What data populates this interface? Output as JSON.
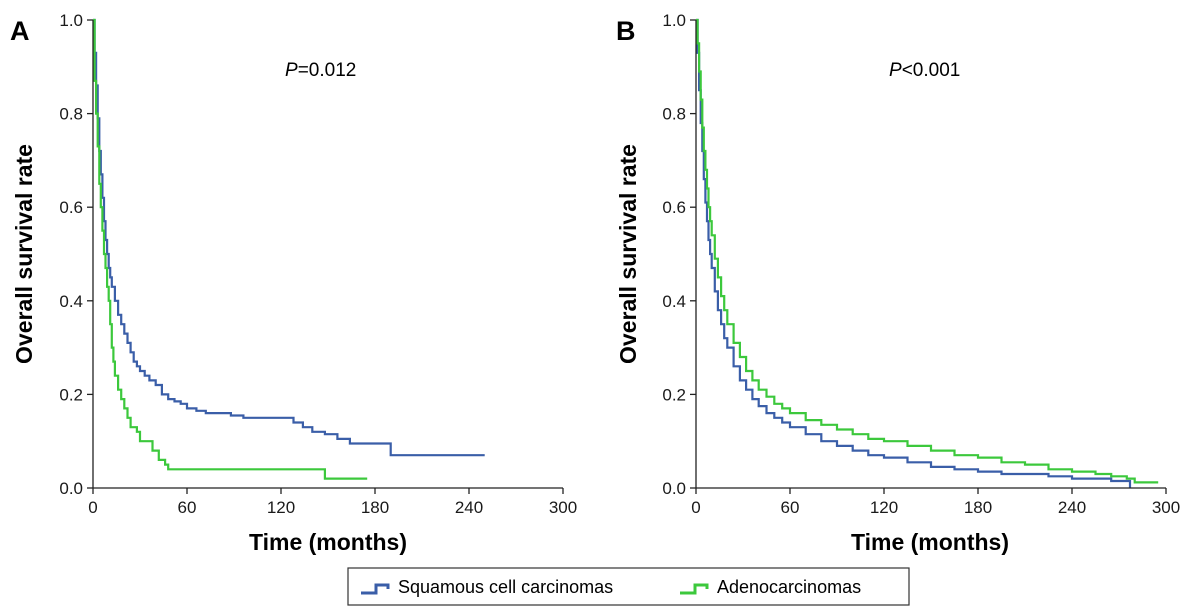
{
  "colors": {
    "squamous": "#3a5ea8",
    "adeno": "#3cc83c",
    "axis": "#222222"
  },
  "legend": {
    "squamous_label": "Squamous cell carcinomas",
    "adeno_label": "Adenocarcinomas"
  },
  "chart_data": [
    {
      "panel": "A",
      "type": "line",
      "step": true,
      "annotation": {
        "prefix": "P",
        "rest": "=0.012"
      },
      "xlabel": "Time (months)",
      "ylabel": "Overall survival rate",
      "xlim": [
        0,
        300
      ],
      "ylim": [
        0,
        1.0
      ],
      "xticks": [
        0,
        60,
        120,
        180,
        240,
        300
      ],
      "yticks": [
        0.0,
        0.2,
        0.4,
        0.6,
        0.8,
        1.0
      ],
      "ytick_labels": [
        "0.0",
        "0.2",
        "0.4",
        "0.6",
        "0.8",
        "1.0"
      ],
      "grid": false,
      "series": [
        {
          "name": "Squamous cell carcinomas",
          "color_key": "squamous",
          "x": [
            0,
            1,
            2,
            3,
            4,
            5,
            6,
            7,
            8,
            9,
            10,
            11,
            12,
            14,
            16,
            18,
            20,
            22,
            24,
            26,
            28,
            30,
            33,
            36,
            40,
            44,
            48,
            52,
            56,
            60,
            66,
            72,
            80,
            88,
            96,
            104,
            112,
            120,
            128,
            134,
            140,
            148,
            156,
            164,
            172,
            180,
            190,
            200,
            210,
            220,
            230,
            240,
            250
          ],
          "y": [
            1.0,
            0.93,
            0.86,
            0.79,
            0.72,
            0.67,
            0.62,
            0.57,
            0.53,
            0.5,
            0.47,
            0.45,
            0.43,
            0.4,
            0.37,
            0.35,
            0.33,
            0.31,
            0.29,
            0.27,
            0.26,
            0.25,
            0.24,
            0.23,
            0.22,
            0.2,
            0.19,
            0.185,
            0.18,
            0.17,
            0.165,
            0.16,
            0.16,
            0.155,
            0.15,
            0.15,
            0.15,
            0.15,
            0.14,
            0.13,
            0.12,
            0.115,
            0.105,
            0.095,
            0.095,
            0.095,
            0.07,
            0.07,
            0.07,
            0.07,
            0.07,
            0.07,
            0.07
          ]
        },
        {
          "name": "Adenocarcinomas",
          "color_key": "adeno",
          "x": [
            0,
            1,
            2,
            3,
            4,
            5,
            6,
            7,
            8,
            9,
            10,
            11,
            12,
            13,
            14,
            16,
            18,
            20,
            22,
            24,
            26,
            28,
            30,
            34,
            38,
            42,
            46,
            48,
            60,
            80,
            100,
            120,
            140,
            148,
            160,
            175
          ],
          "y": [
            1.0,
            0.87,
            0.8,
            0.73,
            0.65,
            0.6,
            0.55,
            0.5,
            0.47,
            0.43,
            0.4,
            0.35,
            0.3,
            0.27,
            0.24,
            0.21,
            0.19,
            0.17,
            0.15,
            0.13,
            0.13,
            0.12,
            0.1,
            0.1,
            0.08,
            0.06,
            0.05,
            0.04,
            0.04,
            0.04,
            0.04,
            0.04,
            0.04,
            0.02,
            0.02,
            0.02
          ]
        }
      ]
    },
    {
      "panel": "B",
      "type": "line",
      "step": true,
      "annotation": {
        "prefix": "P",
        "rest": "<0.001"
      },
      "xlabel": "Time (months)",
      "ylabel": "Overall survival rate",
      "xlim": [
        0,
        300
      ],
      "ylim": [
        0,
        1.0
      ],
      "xticks": [
        0,
        60,
        120,
        180,
        240,
        300
      ],
      "yticks": [
        0.0,
        0.2,
        0.4,
        0.6,
        0.8,
        1.0
      ],
      "ytick_labels": [
        "0.0",
        "0.2",
        "0.4",
        "0.6",
        "0.8",
        "1.0"
      ],
      "grid": false,
      "series": [
        {
          "name": "Squamous cell carcinomas",
          "color_key": "squamous",
          "x": [
            0,
            1,
            2,
            3,
            4,
            5,
            6,
            7,
            8,
            9,
            10,
            12,
            14,
            16,
            18,
            20,
            24,
            28,
            32,
            36,
            40,
            45,
            50,
            55,
            60,
            70,
            80,
            90,
            100,
            110,
            120,
            135,
            150,
            165,
            180,
            195,
            210,
            225,
            240,
            255,
            265,
            275,
            277
          ],
          "y": [
            1.0,
            0.93,
            0.85,
            0.78,
            0.72,
            0.66,
            0.61,
            0.57,
            0.53,
            0.5,
            0.47,
            0.42,
            0.38,
            0.35,
            0.32,
            0.3,
            0.26,
            0.23,
            0.21,
            0.19,
            0.175,
            0.16,
            0.15,
            0.14,
            0.13,
            0.115,
            0.1,
            0.09,
            0.08,
            0.07,
            0.065,
            0.055,
            0.045,
            0.04,
            0.035,
            0.03,
            0.03,
            0.025,
            0.02,
            0.02,
            0.015,
            0.015,
            0.0
          ]
        },
        {
          "name": "Adenocarcinomas",
          "color_key": "adeno",
          "x": [
            0,
            1,
            2,
            3,
            4,
            5,
            6,
            7,
            8,
            9,
            10,
            12,
            14,
            16,
            18,
            20,
            24,
            28,
            32,
            36,
            40,
            45,
            50,
            55,
            60,
            70,
            80,
            90,
            100,
            110,
            120,
            135,
            150,
            165,
            180,
            195,
            210,
            225,
            240,
            255,
            265,
            275,
            280,
            295
          ],
          "y": [
            1.0,
            0.95,
            0.89,
            0.83,
            0.77,
            0.72,
            0.68,
            0.64,
            0.6,
            0.57,
            0.54,
            0.49,
            0.45,
            0.41,
            0.38,
            0.35,
            0.31,
            0.28,
            0.25,
            0.23,
            0.21,
            0.195,
            0.18,
            0.17,
            0.16,
            0.145,
            0.135,
            0.125,
            0.115,
            0.105,
            0.1,
            0.09,
            0.08,
            0.07,
            0.065,
            0.055,
            0.05,
            0.04,
            0.035,
            0.03,
            0.025,
            0.02,
            0.012,
            0.012
          ]
        }
      ]
    }
  ]
}
